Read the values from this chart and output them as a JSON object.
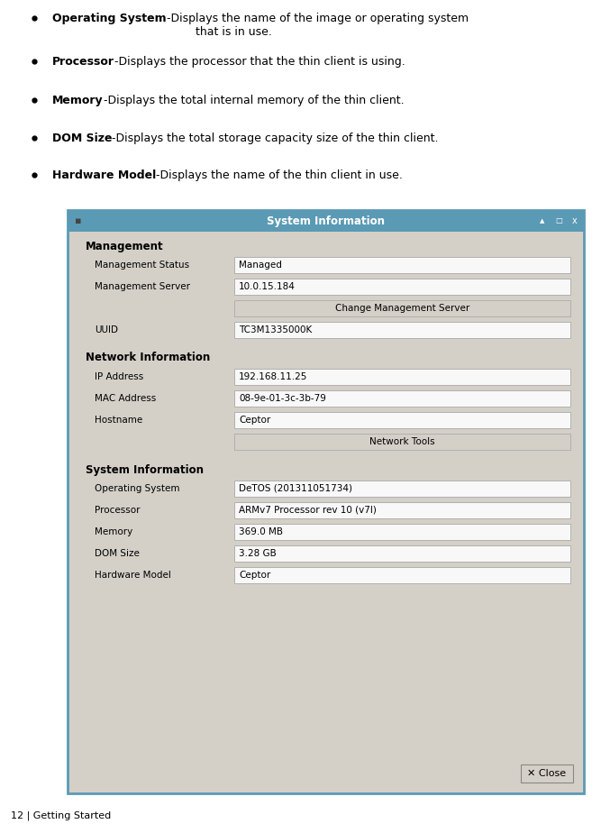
{
  "bg_color": "#ffffff",
  "bullet_items": [
    {
      "bold": "Operating System",
      "rest": "-Displays the name of the image or operating system\n        that is in use."
    },
    {
      "bold": "Processor",
      "rest": "-Displays the processor that the thin client is using."
    },
    {
      "bold": "Memory",
      "rest": "-Displays the total internal memory of the thin client."
    },
    {
      "bold": "DOM Size",
      "rest": "-Displays the total storage capacity size of the thin client."
    },
    {
      "bold": "Hardware Model",
      "rest": "-Displays the name of the thin client in use."
    }
  ],
  "footer_text": "12 | Getting Started",
  "window_title": "System Information",
  "window_title_bg": "#5b9ab5",
  "window_title_fg": "#ffffff",
  "window_bg": "#d4d0c8",
  "window_inner_bg": "#d4d0c8",
  "window_border_color": "#5b9ab5",
  "field_bg": "#f8f8f8",
  "field_border": "#b0b0b0",
  "sections": [
    {
      "name": "Management",
      "fields": [
        {
          "label": "Management Status",
          "value": "Managed",
          "button": false
        },
        {
          "label": "Management Server",
          "value": "10.0.15.184",
          "button": false
        },
        {
          "label": "",
          "value": "Change Management Server",
          "button": true
        },
        {
          "label": "UUID",
          "value": "TC3M1335000K",
          "button": false
        }
      ]
    },
    {
      "name": "Network Information",
      "fields": [
        {
          "label": "IP Address",
          "value": "192.168.11.25",
          "button": false
        },
        {
          "label": "MAC Address",
          "value": "08-9e-01-3c-3b-79",
          "button": false
        },
        {
          "label": "Hostname",
          "value": "Ceptor",
          "button": false
        },
        {
          "label": "",
          "value": "Network Tools",
          "button": true
        }
      ]
    },
    {
      "name": "System Information",
      "fields": [
        {
          "label": "Operating System",
          "value": "DeTOS (201311051734)",
          "button": false
        },
        {
          "label": "Processor",
          "value": "ARMv7 Processor rev 10 (v7l)",
          "button": false
        },
        {
          "label": "Memory",
          "value": "369.0 MB",
          "button": false
        },
        {
          "label": "DOM Size",
          "value": "3.28 GB",
          "button": false
        },
        {
          "label": "Hardware Model",
          "value": "Ceptor",
          "button": false
        }
      ]
    }
  ]
}
